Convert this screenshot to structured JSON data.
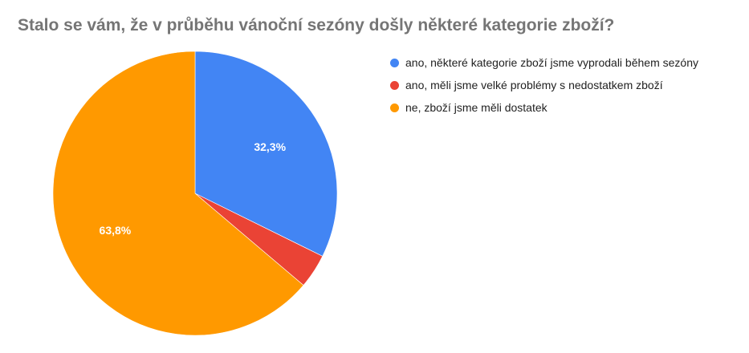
{
  "chart_data": {
    "type": "pie",
    "title": "Stalo se vám, že v průběhu vánoční sezóny došly některé kategorie zboží?",
    "legend_position": "right",
    "slices": [
      {
        "label": "ano, některé kategorie zboží jsme vyprodali během sezóny",
        "value": 32.3,
        "value_label": "32,3%",
        "color": "#4285f4"
      },
      {
        "label": "ano, měli jsme velké problémy s nedostatkem zboží",
        "value": 3.9,
        "value_label": "",
        "color": "#ea4335"
      },
      {
        "label": "ne, zboží jsme měli dostatek",
        "value": 63.8,
        "value_label": "63,8%",
        "color": "#ff9900"
      }
    ]
  }
}
